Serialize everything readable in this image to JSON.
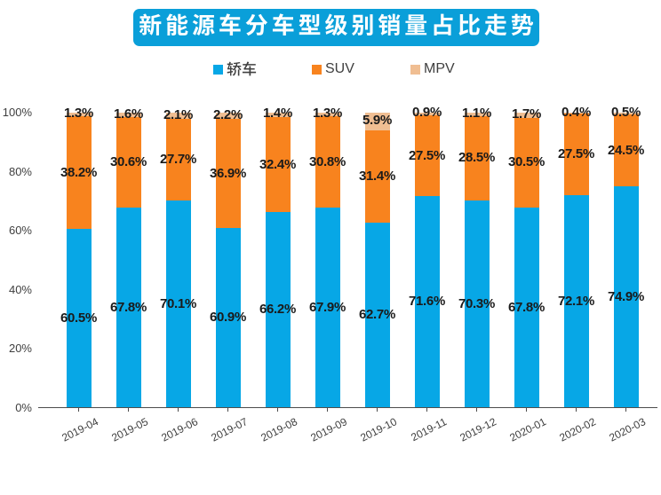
{
  "page": {
    "background_color": "#ffffff"
  },
  "title": {
    "text": "新能源车分车型级别销量占比走势",
    "background_color": "#0a9fd9",
    "text_color": "#ffffff"
  },
  "legend": {
    "items": [
      {
        "label": "轿车",
        "color": "#07a7e6"
      },
      {
        "label": "SUV",
        "color": "#f8831e"
      },
      {
        "label": "MPV",
        "color": "#f0be92"
      }
    ]
  },
  "chart_data": {
    "type": "bar",
    "stacked": true,
    "title": "新能源车分车型级别销量占比走势",
    "xlabel": "",
    "ylabel": "",
    "ylim": [
      0,
      100
    ],
    "grid": false,
    "legend_position": "top",
    "y_tick_labels": [
      "100%",
      "80%",
      "60%",
      "40%",
      "20%",
      "0%"
    ],
    "value_suffix": "%",
    "categories": [
      "2019-04",
      "2019-05",
      "2019-06",
      "2019-07",
      "2019-08",
      "2019-09",
      "2019-10",
      "2019-11",
      "2019-12",
      "2020-01",
      "2020-02",
      "2020-03"
    ],
    "series": [
      {
        "name": "轿车",
        "color": "#07a7e6",
        "values": [
          60.5,
          67.8,
          70.1,
          60.9,
          66.2,
          67.9,
          62.7,
          71.6,
          70.3,
          67.8,
          72.1,
          74.9
        ]
      },
      {
        "name": "SUV",
        "color": "#f8831e",
        "values": [
          38.2,
          30.6,
          27.7,
          36.9,
          32.4,
          30.8,
          31.4,
          27.5,
          28.5,
          30.5,
          27.5,
          24.5
        ]
      },
      {
        "name": "MPV",
        "color": "#f0be92",
        "values": [
          1.3,
          1.6,
          2.1,
          2.2,
          1.4,
          1.3,
          5.9,
          0.9,
          1.1,
          1.7,
          0.4,
          0.5
        ]
      }
    ]
  }
}
